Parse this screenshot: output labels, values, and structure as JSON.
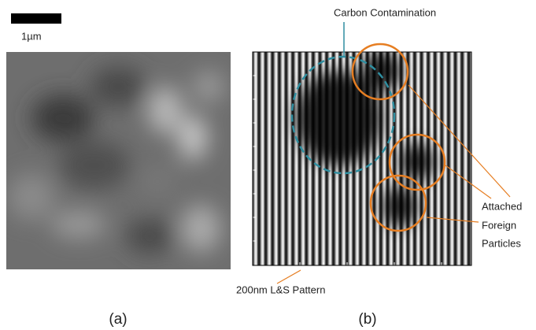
{
  "scale_bar": {
    "label": "1µm"
  },
  "panel_a": {
    "caption": "(a)"
  },
  "panel_b": {
    "caption": "(b)",
    "annotations": {
      "carbon": "Carbon Contamination",
      "particles": [
        "Attached",
        "Foreign",
        "Particles"
      ],
      "pattern": "200nm L&S Pattern"
    }
  }
}
